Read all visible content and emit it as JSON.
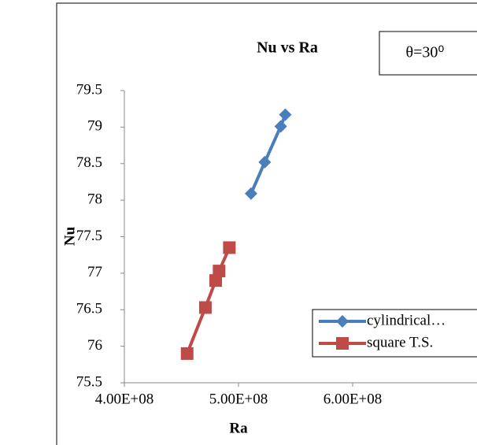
{
  "chart_data": {
    "type": "scatter-line",
    "title": "Nu vs Ra",
    "annotation": "θ=30⁰",
    "x_label": "Ra",
    "y_label": "Nu",
    "xlim": [
      400000000,
      710000000
    ],
    "xticks": [
      {
        "value": 400000000,
        "label": "4.00E+08"
      },
      {
        "value": 500000000,
        "label": "5.00E+08"
      },
      {
        "value": 600000000,
        "label": "6.00E+08"
      }
    ],
    "ylim": [
      75.5,
      79.5
    ],
    "yticks": [
      75.5,
      76,
      76.5,
      77,
      77.5,
      78,
      78.5,
      79,
      79.5
    ],
    "series": [
      {
        "name": "cylindrical…",
        "color": "#4a7ebb",
        "marker": "diamond",
        "x": [
          511000000,
          523000000,
          537000000,
          541000000
        ],
        "values": [
          78.09,
          78.52,
          79.01,
          79.17
        ]
      },
      {
        "name": "square T.S.",
        "color": "#be4b48",
        "marker": "square",
        "x": [
          455000000,
          471000000,
          480000000,
          483000000,
          492000000
        ],
        "values": [
          75.9,
          76.53,
          76.9,
          77.03,
          77.35
        ]
      }
    ]
  }
}
